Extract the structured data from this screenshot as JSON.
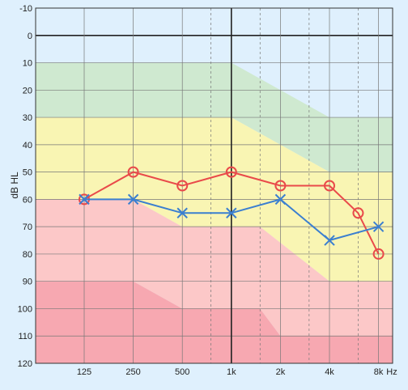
{
  "chart_data": {
    "type": "line",
    "title": "",
    "ylabel": "dB HL",
    "xunit": "Hz",
    "y_inverted": true,
    "ylim": [
      -10,
      120
    ],
    "y_ticks": [
      -10,
      0,
      10,
      20,
      30,
      40,
      50,
      60,
      70,
      80,
      90,
      100,
      110,
      120
    ],
    "x_scale": "log",
    "x_ticks": [
      {
        "hz": 125,
        "label": "125"
      },
      {
        "hz": 250,
        "label": "250"
      },
      {
        "hz": 500,
        "label": "500"
      },
      {
        "hz": 1000,
        "label": "1k"
      },
      {
        "hz": 2000,
        "label": "2k"
      },
      {
        "hz": 4000,
        "label": "4k"
      },
      {
        "hz": 8000,
        "label": "8k"
      }
    ],
    "minor_x_hz": [
      750,
      1500,
      3000,
      6000
    ],
    "grid": true,
    "zones": [
      {
        "name": "normal",
        "color": "#cfe9d0"
      },
      {
        "name": "mild",
        "color": "#f9f5b3"
      },
      {
        "name": "moderate",
        "color": "#fcc8c8"
      },
      {
        "name": "severe",
        "color": "#f7a8b1"
      }
    ],
    "series": [
      {
        "marker": "circle",
        "color": "#e94a4a",
        "x": [
          125,
          250,
          500,
          1000,
          2000,
          4000,
          6000,
          8000
        ],
        "y": [
          60,
          50,
          55,
          50,
          55,
          55,
          65,
          80
        ]
      },
      {
        "marker": "cross",
        "color": "#3b7fd0",
        "x": [
          125,
          250,
          500,
          1000,
          2000,
          4000,
          8000
        ],
        "y": [
          60,
          60,
          65,
          65,
          60,
          75,
          70
        ]
      }
    ]
  }
}
